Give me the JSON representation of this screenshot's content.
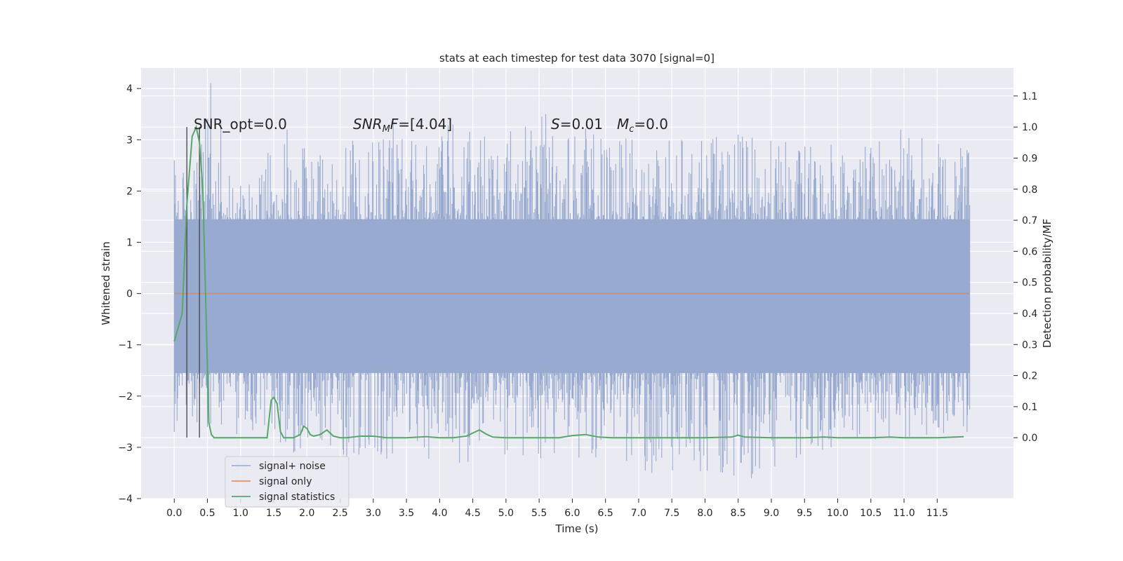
{
  "chart_data": {
    "type": "line",
    "title": "stats at each timestep for test data 3070 [signal=0]",
    "xlabel": "Time (s)",
    "ylabel_left": "Whitened strain",
    "ylabel_right": "Detection probability/MF",
    "xlim": [
      -0.5,
      12.65
    ],
    "ylim_left": [
      -4,
      4.4
    ],
    "ylim_right": [
      -0.196,
      1.19
    ],
    "x_ticks": [
      "0.0",
      "0.5",
      "1.0",
      "1.5",
      "2.0",
      "2.5",
      "3.0",
      "3.5",
      "4.0",
      "4.5",
      "5.0",
      "5.5",
      "6.0",
      "6.5",
      "7.0",
      "7.5",
      "8.0",
      "8.5",
      "9.0",
      "9.5",
      "10.0",
      "10.5",
      "11.0",
      "11.5"
    ],
    "y_ticks_left": [
      "−4",
      "−3",
      "−2",
      "−1",
      "0",
      "1",
      "2",
      "3",
      "4"
    ],
    "y_ticks_right": [
      "0.0",
      "0.1",
      "0.2",
      "0.3",
      "0.4",
      "0.5",
      "0.6",
      "0.7",
      "0.8",
      "0.9",
      "1.0",
      "1.1"
    ],
    "grid": true,
    "legend_placement": "lower-left",
    "annotations": {
      "snr_opt": "SNR_opt=0.0",
      "snr_mf": "=[4.04]",
      "s": "=0.01",
      "mc": "=0.0"
    },
    "vertical_markers_x": [
      0.19,
      0.38
    ],
    "series": [
      {
        "name": "signal+ noise",
        "axis": "left",
        "color": "#98AACF",
        "x_range": [
          0.0,
          11.99
        ],
        "envelope_upper": [
          [
            0.0,
            2.6
          ],
          [
            0.3,
            2.4
          ],
          [
            0.55,
            4.1
          ],
          [
            1.0,
            2.1
          ],
          [
            1.7,
            3.2
          ],
          [
            2.2,
            2.7
          ],
          [
            3.3,
            3.4
          ],
          [
            4.2,
            3.3
          ],
          [
            5.6,
            3.5
          ],
          [
            6.9,
            3.0
          ],
          [
            8.5,
            3.1
          ],
          [
            9.9,
            2.9
          ],
          [
            10.95,
            3.2
          ],
          [
            11.95,
            2.8
          ]
        ],
        "envelope_lower": [
          [
            0.0,
            -2.7
          ],
          [
            0.5,
            -2.6
          ],
          [
            1.8,
            -3.1
          ],
          [
            2.6,
            -3.2
          ],
          [
            4.3,
            -3.3
          ],
          [
            6.1,
            -3.2
          ],
          [
            7.2,
            -3.5
          ],
          [
            8.7,
            -3.6
          ],
          [
            9.9,
            -3.0
          ],
          [
            11.95,
            -2.7
          ]
        ]
      },
      {
        "name": "signal only",
        "axis": "left",
        "color": "#DD8452",
        "x": [
          0.0,
          11.99
        ],
        "y": [
          0.0,
          0.0
        ]
      },
      {
        "name": "signal statistics",
        "axis": "right",
        "color": "#55A868",
        "x": [
          0.0,
          0.12,
          0.19,
          0.27,
          0.33,
          0.38,
          0.43,
          0.48,
          0.52,
          0.56,
          0.6,
          0.8,
          1.0,
          1.2,
          1.4,
          1.46,
          1.5,
          1.55,
          1.6,
          1.65,
          1.7,
          1.8,
          1.9,
          1.95,
          2.0,
          2.05,
          2.1,
          2.2,
          2.3,
          2.4,
          2.5,
          2.6,
          2.8,
          3.0,
          3.2,
          3.5,
          3.8,
          4.0,
          4.2,
          4.4,
          4.5,
          4.6,
          4.7,
          4.8,
          5.0,
          5.5,
          5.8,
          6.0,
          6.2,
          6.4,
          6.6,
          7.0,
          7.5,
          8.0,
          8.4,
          8.5,
          8.6,
          9.0,
          9.5,
          9.8,
          10.0,
          10.5,
          10.8,
          11.0,
          11.5,
          11.9
        ],
        "y": [
          0.31,
          0.4,
          0.75,
          0.97,
          1.0,
          0.95,
          0.8,
          0.4,
          0.05,
          0.01,
          0.0,
          0.0,
          0.0,
          0.0,
          0.0,
          0.12,
          0.13,
          0.11,
          0.02,
          0.0,
          0.0,
          0.0,
          0.01,
          0.037,
          0.03,
          0.01,
          0.005,
          0.01,
          0.025,
          0.005,
          0.0,
          0.0,
          0.005,
          0.005,
          0.0,
          0.0,
          0.003,
          0.0,
          0.0,
          0.005,
          0.015,
          0.025,
          0.012,
          0.002,
          0.0,
          0.0,
          0.0,
          0.007,
          0.01,
          0.002,
          0.0,
          0.0,
          0.0,
          0.0,
          0.002,
          0.008,
          0.002,
          0.0,
          0.0,
          0.002,
          0.0,
          0.0,
          0.002,
          0.0,
          0.0,
          0.003
        ]
      }
    ]
  }
}
